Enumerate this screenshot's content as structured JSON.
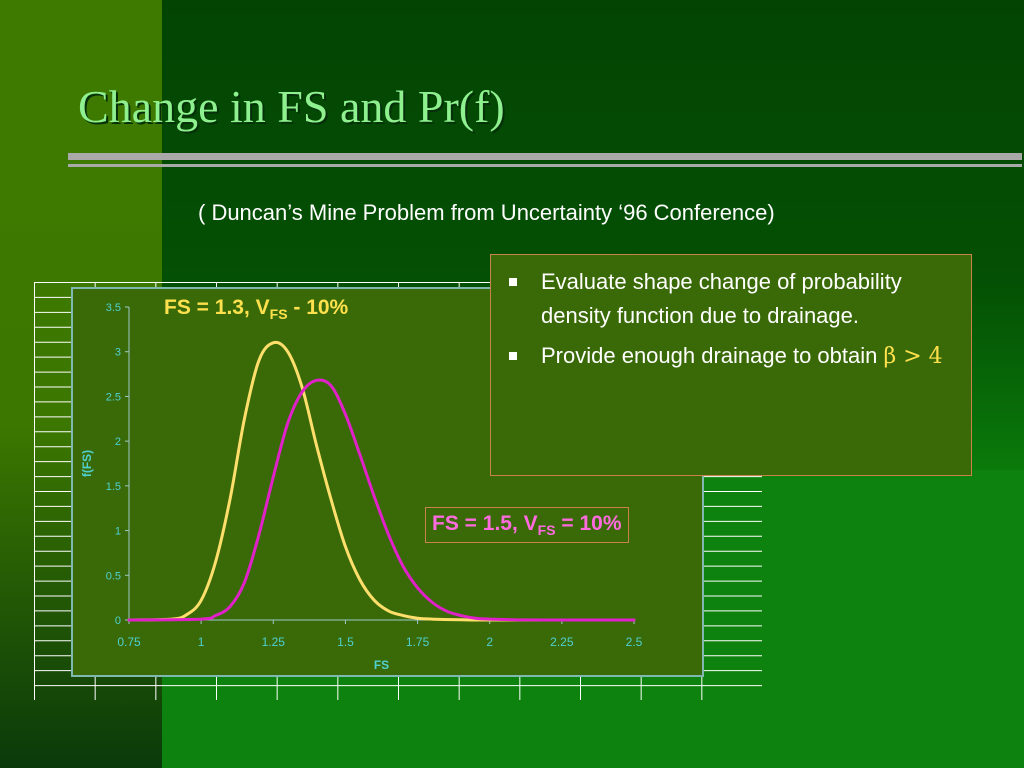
{
  "slide": {
    "title": "Change in FS and Pr(f)",
    "subtitle": "( Duncan’s Mine Problem from Uncertainty ‘96 Conference)"
  },
  "annotations": {
    "label_a_main": "FS = 1.3, V",
    "label_a_sub": "FS",
    "label_a_tail": " - 10%",
    "label_b_main": "FS = 1.5, V",
    "label_b_sub": "FS",
    "label_b_tail": " = 10%"
  },
  "bullets": [
    {
      "text": "Evaluate shape change of probability density function due to drainage."
    },
    {
      "text": "Provide enough drainage to obtain ",
      "symbol": "β > 4"
    }
  ],
  "colors": {
    "curve_a": "#ffdf6b",
    "curve_b": "#e020c8",
    "axis_text": "#4fd0d0",
    "title": "#8ef08e"
  },
  "chart_data": {
    "type": "line",
    "xlabel": "FS",
    "ylabel": "f(FS)",
    "xlim": [
      0.75,
      2.5
    ],
    "ylim": [
      0,
      3.5
    ],
    "x_ticks": [
      "0.75",
      "1",
      "1.25",
      "1.5",
      "1.75",
      "2",
      "2.25",
      "2.5"
    ],
    "y_ticks": [
      "0",
      "0.5",
      "1",
      "1.5",
      "2",
      "2.5",
      "3",
      "3.5"
    ],
    "grid": false,
    "series": [
      {
        "color": "#ffdf6b",
        "x": [
          0.75,
          0.9,
          0.95,
          1.0,
          1.05,
          1.1,
          1.15,
          1.2,
          1.25,
          1.3,
          1.35,
          1.4,
          1.45,
          1.5,
          1.55,
          1.6,
          1.65,
          1.7,
          1.75,
          1.8,
          1.9,
          2.0,
          2.5
        ],
        "y": [
          0,
          0.01,
          0.06,
          0.22,
          0.65,
          1.35,
          2.25,
          2.9,
          3.1,
          3.0,
          2.6,
          1.95,
          1.35,
          0.82,
          0.45,
          0.22,
          0.1,
          0.05,
          0.02,
          0.01,
          0.003,
          0,
          0
        ]
      },
      {
        "color": "#e020c8",
        "x": [
          0.75,
          1.0,
          1.05,
          1.1,
          1.15,
          1.2,
          1.25,
          1.3,
          1.35,
          1.4,
          1.45,
          1.5,
          1.55,
          1.6,
          1.65,
          1.7,
          1.75,
          1.8,
          1.85,
          1.9,
          1.95,
          2.0,
          2.1,
          2.2,
          2.5
        ],
        "y": [
          0,
          0.01,
          0.05,
          0.15,
          0.42,
          0.95,
          1.6,
          2.2,
          2.55,
          2.68,
          2.62,
          2.3,
          1.85,
          1.38,
          0.95,
          0.6,
          0.36,
          0.2,
          0.1,
          0.05,
          0.02,
          0.01,
          0.002,
          0,
          0
        ]
      }
    ]
  }
}
